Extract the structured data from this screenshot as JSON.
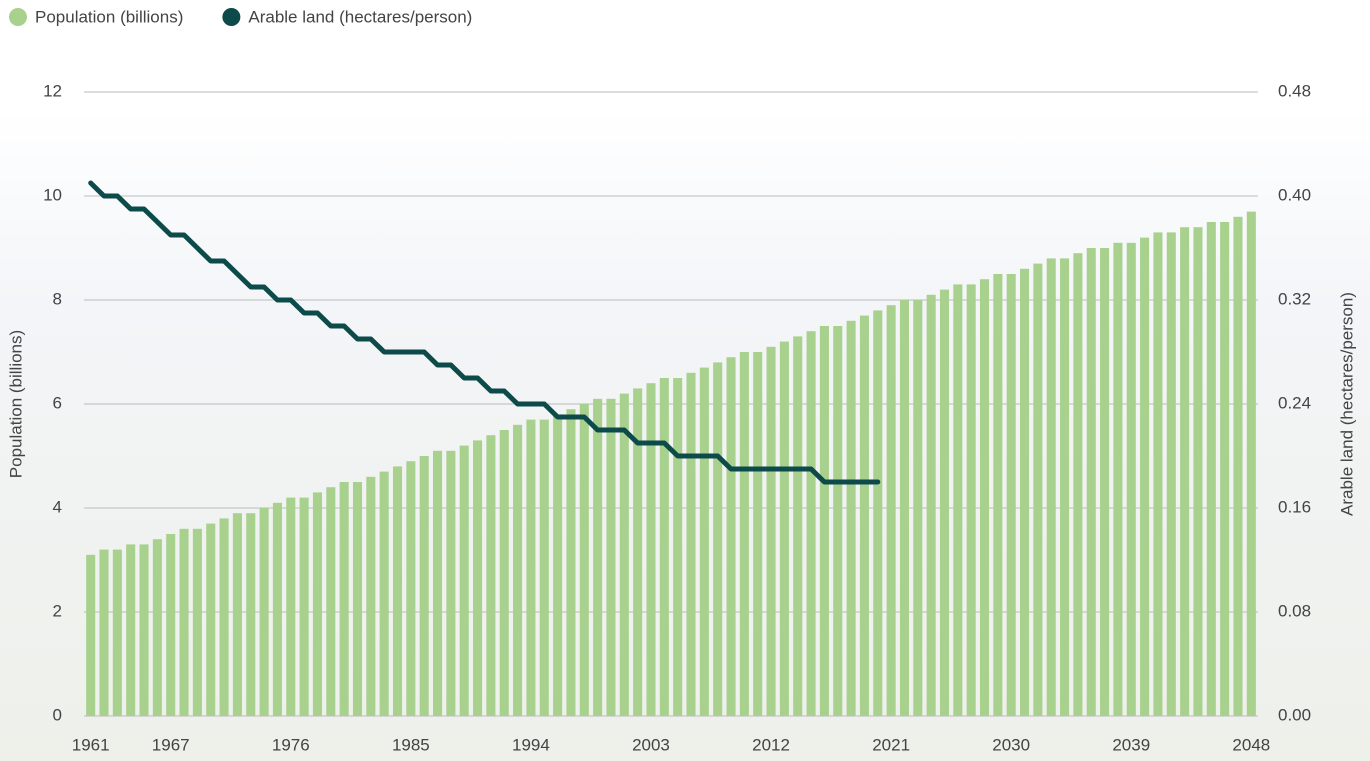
{
  "chart_data": {
    "type": "bar",
    "y_label": "Population (billions)",
    "y2_label": "Arable land (hectares/person)",
    "categories": [
      "1961",
      null,
      null,
      null,
      null,
      null,
      "1967",
      null,
      null,
      null,
      null,
      null,
      null,
      null,
      null,
      "1976",
      null,
      null,
      null,
      null,
      null,
      null,
      null,
      null,
      "1985",
      null,
      null,
      null,
      null,
      null,
      null,
      null,
      null,
      "1994",
      null,
      null,
      null,
      null,
      null,
      null,
      null,
      null,
      "2003",
      null,
      null,
      null,
      null,
      null,
      null,
      null,
      null,
      "2012",
      null,
      null,
      null,
      null,
      null,
      null,
      null,
      null,
      "2021",
      null,
      null,
      null,
      null,
      null,
      null,
      null,
      null,
      "2030",
      null,
      null,
      null,
      null,
      null,
      null,
      null,
      null,
      "2039",
      null,
      null,
      null,
      null,
      null,
      null,
      null,
      null,
      "2048"
    ],
    "series": [
      {
        "name": "Population (billions)",
        "color": "#a9d18e",
        "type": "bar",
        "values": [
          3.1,
          3.2,
          3.2,
          3.3,
          3.3,
          3.4,
          3.5,
          3.6,
          3.6,
          3.7,
          3.8,
          3.9,
          3.9,
          4.0,
          4.1,
          4.2,
          4.2,
          4.3,
          4.4,
          4.5,
          4.5,
          4.6,
          4.7,
          4.8,
          4.9,
          5.0,
          5.1,
          5.1,
          5.2,
          5.3,
          5.4,
          5.5,
          5.6,
          5.7,
          5.7,
          5.8,
          5.9,
          6.0,
          6.1,
          6.1,
          6.2,
          6.3,
          6.4,
          6.5,
          6.5,
          6.6,
          6.7,
          6.8,
          6.9,
          7.0,
          7.0,
          7.1,
          7.2,
          7.3,
          7.4,
          7.5,
          7.5,
          7.6,
          7.7,
          7.8,
          7.9,
          8.0,
          8.0,
          8.1,
          8.2,
          8.3,
          8.3,
          8.4,
          8.5,
          8.5,
          8.6,
          8.7,
          8.8,
          8.8,
          8.9,
          9.0,
          9.0,
          9.1,
          9.1,
          9.2,
          9.3,
          9.3,
          9.4,
          9.4,
          9.5,
          9.5,
          9.6,
          9.7
        ]
      },
      {
        "name": "Arable land (hectares/person)",
        "color": "#0d4a4a",
        "type": "line",
        "axis": "y2",
        "values": [
          0.41,
          0.4,
          0.4,
          0.39,
          0.39,
          0.38,
          0.37,
          0.37,
          0.36,
          0.35,
          0.35,
          0.34,
          0.33,
          0.33,
          0.32,
          0.32,
          0.31,
          0.31,
          0.3,
          0.3,
          0.29,
          0.29,
          0.28,
          0.28,
          0.28,
          0.28,
          0.27,
          0.27,
          0.26,
          0.26,
          0.25,
          0.25,
          0.24,
          0.24,
          0.24,
          0.23,
          0.23,
          0.23,
          0.22,
          0.22,
          0.22,
          0.21,
          0.21,
          0.21,
          0.2,
          0.2,
          0.2,
          0.2,
          0.19,
          0.19,
          0.19,
          0.19,
          0.19,
          0.19,
          0.19,
          0.18,
          0.18,
          0.18,
          0.18,
          0.18,
          null,
          null,
          null,
          null,
          null,
          null,
          null,
          null,
          null,
          null,
          null,
          null,
          null,
          null,
          null,
          null,
          null,
          null,
          null,
          null,
          null,
          null,
          null,
          null,
          null,
          null,
          null,
          null
        ]
      }
    ],
    "ylim": [
      0,
      12
    ],
    "yticks": [
      0,
      2,
      4,
      6,
      8,
      10,
      12
    ],
    "y2lim": [
      0,
      0.48
    ],
    "y2ticks": [
      {
        "value": 0,
        "label": "0.00"
      },
      0.08,
      0.16,
      0.24,
      0.32,
      {
        "value": 0.4,
        "label": "0.40"
      },
      0.48
    ],
    "grid": true,
    "legend": "top-left"
  }
}
